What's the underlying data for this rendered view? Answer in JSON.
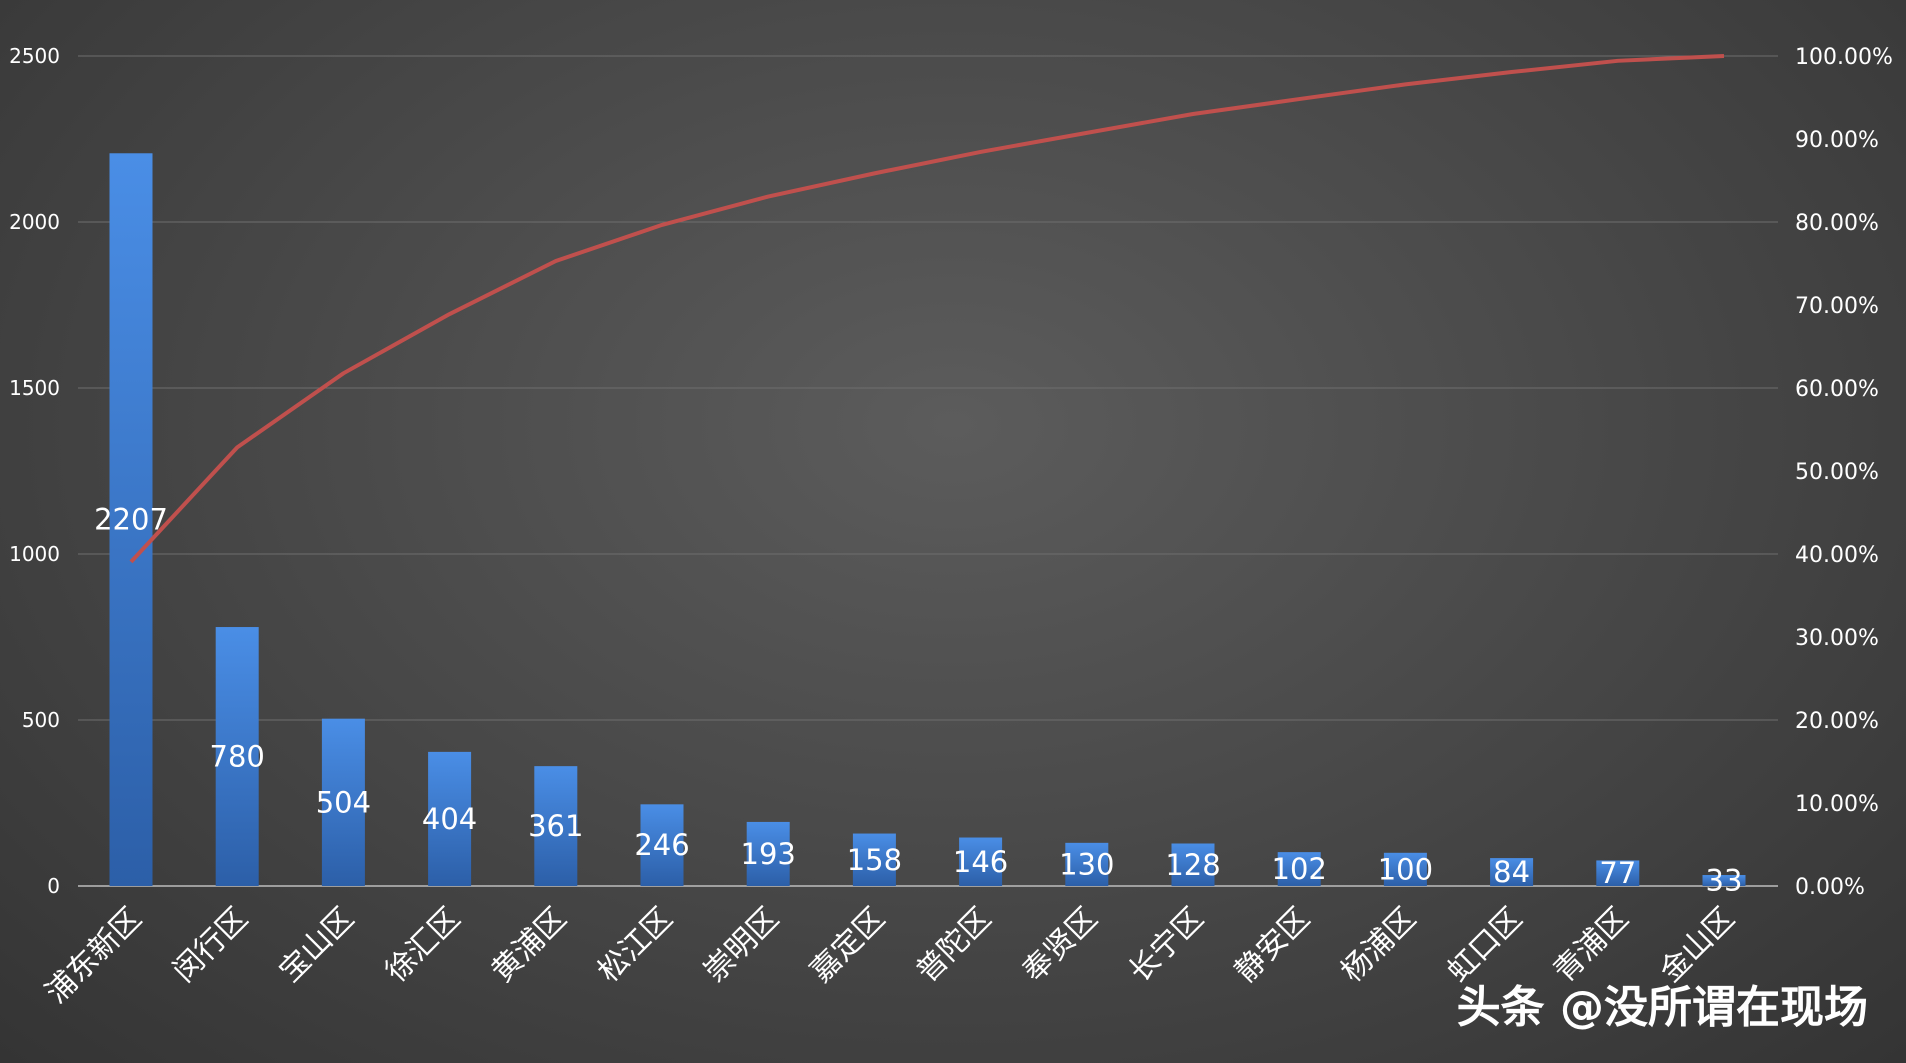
{
  "chart_data": {
    "type": "bar",
    "categories": [
      "浦东新区",
      "闵行区",
      "宝山区",
      "徐汇区",
      "黄浦区",
      "松江区",
      "崇明区",
      "嘉定区",
      "普陀区",
      "奉贤区",
      "长宁区",
      "静安区",
      "杨浦区",
      "虹口区",
      "青浦区",
      "金山区"
    ],
    "series": [
      {
        "type": "bar",
        "values": [
          2207,
          780,
          504,
          404,
          361,
          246,
          193,
          158,
          146,
          130,
          128,
          102,
          100,
          84,
          77,
          33
        ]
      },
      {
        "type": "line",
        "axis": "right",
        "values": [
          0.3905,
          0.5285,
          0.6177,
          0.6891,
          0.753,
          0.7965,
          0.8307,
          0.8586,
          0.8844,
          0.9074,
          0.9301,
          0.9481,
          0.9658,
          0.9807,
          0.9942,
          1.0
        ]
      }
    ],
    "yaxis_left": {
      "range": [
        0,
        2500
      ],
      "ticks": [
        "0",
        "500",
        "1000",
        "1500",
        "2000",
        "2500"
      ]
    },
    "yaxis_right": {
      "range": [
        0,
        1
      ],
      "ticks": [
        "0.00%",
        "10.00%",
        "20.00%",
        "30.00%",
        "40.00%",
        "50.00%",
        "60.00%",
        "70.00%",
        "80.00%",
        "90.00%",
        "100.00%"
      ]
    },
    "grid": true,
    "legend": "none",
    "colors": {
      "bar": "#3a7bd5",
      "line": "#c0504d"
    }
  },
  "watermark": "头条 @没所谓在现场"
}
